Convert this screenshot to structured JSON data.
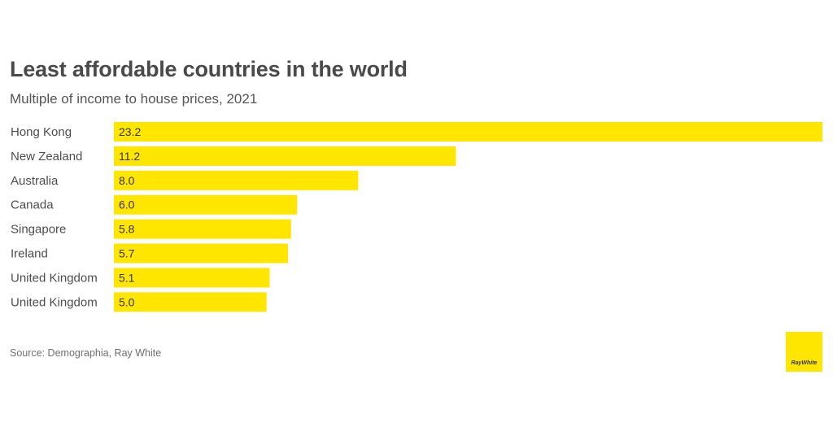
{
  "colors": {
    "bar": "#ffe600",
    "label_text": "#4d4d4d",
    "value_text": "#333333"
  },
  "source": "Source: Demographia, Ray White",
  "logo": {
    "text": "RayWhite",
    "icon": "ray-white-logo"
  },
  "chart_data": {
    "type": "bar",
    "orientation": "horizontal",
    "title": "Least affordable countries in the world",
    "subtitle": "Multiple of income to house prices, 2021",
    "categories": [
      "Hong Kong",
      "New Zealand",
      "Australia",
      "Canada",
      "Singapore",
      "Ireland",
      "United Kingdom",
      "United Kingdom"
    ],
    "values": [
      23.2,
      11.2,
      8.0,
      6.0,
      5.8,
      5.7,
      5.1,
      5.0
    ],
    "value_labels": [
      "23.2",
      "11.2",
      "8.0",
      "6.0",
      "5.8",
      "5.7",
      "5.1",
      "5.0"
    ],
    "xlim": [
      0,
      23.2
    ],
    "grid": false,
    "legend": "none"
  }
}
